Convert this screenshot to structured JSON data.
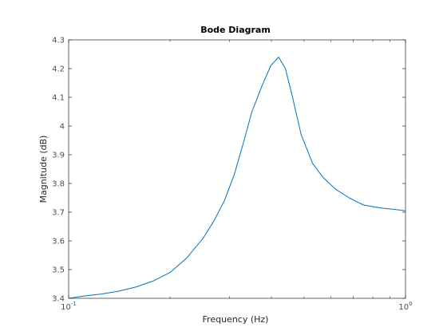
{
  "chart_data": {
    "type": "line",
    "title": "Bode Diagram",
    "xlabel": "Frequency  (Hz)",
    "ylabel": "Magnitude (dB)",
    "x_scale": "log",
    "xlim": [
      0.1,
      1
    ],
    "ylim": [
      3.4,
      4.3
    ],
    "grid": false,
    "x_ticks": [
      {
        "value": 0.1,
        "base": "10",
        "exp": "-1"
      },
      {
        "value": 1,
        "base": "10",
        "exp": "0"
      }
    ],
    "y_ticks": [
      {
        "value": 3.4,
        "label": "3.4"
      },
      {
        "value": 3.5,
        "label": "3.5"
      },
      {
        "value": 3.6,
        "label": "3.6"
      },
      {
        "value": 3.7,
        "label": "3.7"
      },
      {
        "value": 3.8,
        "label": "3.8"
      },
      {
        "value": 3.9,
        "label": "3.9"
      },
      {
        "value": 4.0,
        "label": "4"
      },
      {
        "value": 4.1,
        "label": "4.1"
      },
      {
        "value": 4.2,
        "label": "4.2"
      },
      {
        "value": 4.3,
        "label": "4.3"
      }
    ],
    "series": [
      {
        "color": "#0072bd",
        "x": [
          0.1,
          0.111,
          0.125,
          0.141,
          0.159,
          0.178,
          0.2,
          0.224,
          0.251,
          0.27,
          0.29,
          0.31,
          0.33,
          0.35,
          0.375,
          0.398,
          0.42,
          0.44,
          0.46,
          0.49,
          0.53,
          0.57,
          0.62,
          0.68,
          0.75,
          0.84,
          0.92,
          1.0
        ],
        "y": [
          3.4,
          3.408,
          3.415,
          3.425,
          3.44,
          3.46,
          3.49,
          3.54,
          3.61,
          3.67,
          3.74,
          3.83,
          3.94,
          4.05,
          4.14,
          4.21,
          4.24,
          4.2,
          4.11,
          3.97,
          3.87,
          3.82,
          3.78,
          3.75,
          3.725,
          3.715,
          3.71,
          3.705
        ]
      }
    ]
  }
}
